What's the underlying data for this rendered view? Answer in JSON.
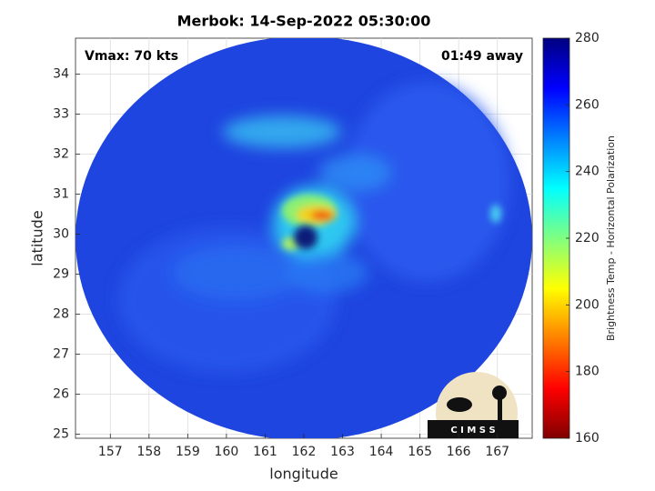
{
  "chart_data": {
    "type": "image",
    "title": "Merbok: 14-Sep-2022 05:30:00",
    "annotations": [
      "Vmax: 70 kts",
      "01:49 away"
    ],
    "x_label": "longitude",
    "y_label": "latitude",
    "xlim": [
      156.1,
      167.9
    ],
    "xticks": [
      157,
      158,
      159,
      160,
      161,
      162,
      163,
      164,
      165,
      166,
      167
    ],
    "ylim": [
      24.9,
      34.9
    ],
    "yticks": [
      25,
      26,
      27,
      28,
      29,
      30,
      31,
      32,
      33,
      34
    ],
    "grid": true,
    "colorbar": {
      "label": "Brightness Temp - Horizontal Polarization",
      "colormap": "jet",
      "lim": [
        160,
        280
      ],
      "ticks": [
        160,
        180,
        200,
        220,
        240,
        260,
        280
      ]
    },
    "logo": "C I M S S"
  }
}
